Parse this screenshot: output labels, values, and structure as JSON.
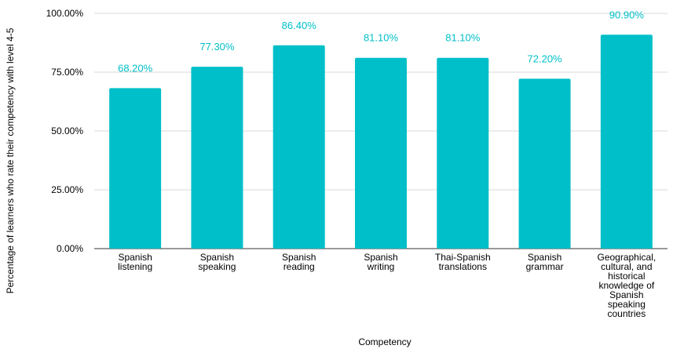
{
  "chart_data": {
    "type": "bar",
    "title": "",
    "xlabel": "Competency",
    "ylabel": "Percentage of learners who rate their competency with level 4-5",
    "ylim": [
      0,
      100
    ],
    "y_ticks": [
      "0.00%",
      "25.00%",
      "50.00%",
      "75.00%",
      "100.00%"
    ],
    "categories": [
      "Spanish listening",
      "Spanish speaking",
      "Spanish reading",
      "Spanish writing",
      "Thai-Spanish translations",
      "Spanish grammar",
      "Geographical, cultural, and historical knowledge of Spanish speaking countries"
    ],
    "category_lines": [
      [
        "Spanish",
        "listening"
      ],
      [
        "Spanish",
        "speaking"
      ],
      [
        "Spanish",
        "reading"
      ],
      [
        "Spanish",
        "writing"
      ],
      [
        "Thai-Spanish",
        "translations"
      ],
      [
        "Spanish",
        "grammar"
      ],
      [
        "Geographical,",
        "cultural, and",
        "historical",
        "knowledge of",
        "Spanish",
        "speaking",
        "countries"
      ]
    ],
    "values": [
      68.2,
      77.3,
      86.4,
      81.1,
      81.1,
      72.2,
      90.9
    ],
    "data_labels": [
      "68.20%",
      "77.30%",
      "86.40%",
      "81.10%",
      "81.10%",
      "72.20%",
      "90.90%"
    ],
    "grid": true,
    "legend": "none",
    "colors": {
      "bar": "#00bfc8",
      "label": "#00bfc8",
      "grid": "#d9d9d9",
      "axis": "#333333"
    }
  }
}
